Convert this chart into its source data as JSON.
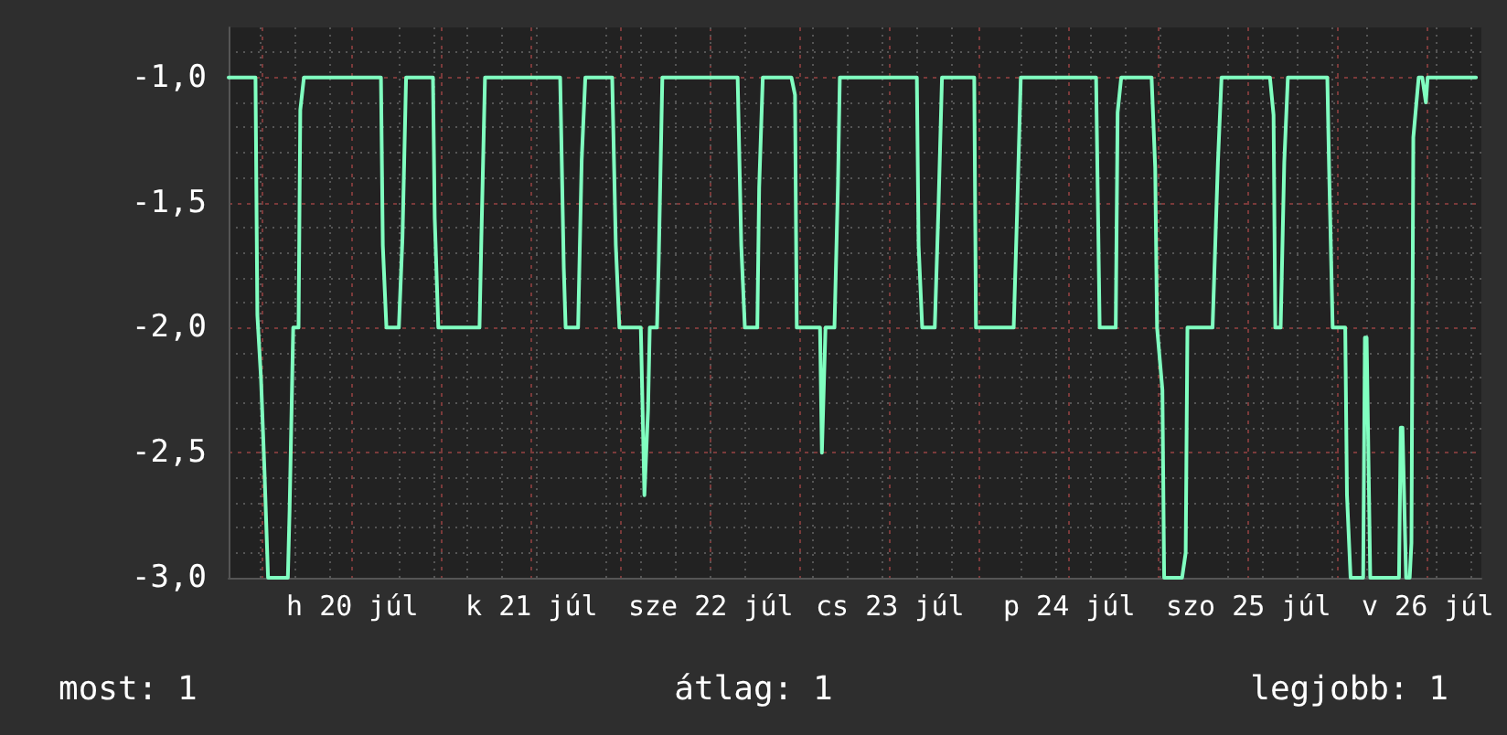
{
  "chart_data": {
    "type": "line",
    "x": [
      "--07-19T19:26",
      "--07-19T23:02",
      "--07-19T23:17",
      "--07-19T23:46",
      "--07-20T00:14",
      "--07-20T00:43",
      "--07-20T03:22",
      "--07-20T03:36",
      "--07-20T04:05",
      "--07-20T04:48",
      "--07-20T05:02",
      "--07-20T05:31",
      "--07-20T15:50",
      "--07-20T16:05",
      "--07-20T16:34",
      "--07-20T18:14",
      "--07-20T18:43",
      "--07-20T19:12",
      "--07-20T22:48",
      "--07-20T23:02",
      "--07-20T23:31",
      "--07-21T05:02",
      "--07-21T05:17",
      "--07-21T05:46",
      "--07-21T15:50",
      "--07-21T16:19",
      "--07-21T16:34",
      "--07-21T18:14",
      "--07-21T18:43",
      "--07-21T19:12",
      "--07-21T22:48",
      "--07-21T23:17",
      "--07-21T23:46",
      "--07-22T02:38",
      "--07-22T03:07",
      "--07-22T03:36",
      "--07-22T03:50",
      "--07-22T04:48",
      "--07-22T05:02",
      "--07-22T05:31",
      "--07-22T15:36",
      "--07-22T16:05",
      "--07-22T16:34",
      "--07-22T18:14",
      "--07-22T18:29",
      "--07-22T18:58",
      "--07-22T22:48",
      "--07-22T23:17",
      "--07-22T23:31",
      "--07-23T02:38",
      "--07-23T02:53",
      "--07-23T03:22",
      "--07-23T04:34",
      "--07-23T05:02",
      "--07-23T05:17",
      "--07-23T15:36",
      "--07-23T15:50",
      "--07-23T16:19",
      "--07-23T18:00",
      "--07-23T18:29",
      "--07-23T18:58",
      "--07-23T23:17",
      "--07-23T23:31",
      "--07-24T00:00",
      "--07-24T04:34",
      "--07-24T05:02",
      "--07-24T05:31",
      "--07-24T15:36",
      "--07-24T16:05",
      "--07-24T18:14",
      "--07-24T18:29",
      "--07-24T18:58",
      "--07-24T23:02",
      "--07-24T23:31",
      "--07-24T23:46",
      "--07-25T00:29",
      "--07-25T00:43",
      "--07-25T03:07",
      "--07-25T03:36",
      "--07-25T03:50",
      "--07-25T07:12",
      "--07-25T07:55",
      "--07-25T08:24",
      "--07-25T14:53",
      "--07-25T15:22",
      "--07-25T15:36",
      "--07-25T16:19",
      "--07-25T16:48",
      "--07-25T17:17",
      "--07-25T22:34",
      "--07-25T22:48",
      "--07-25T23:17",
      "--07-26T00:58",
      "--07-26T01:12",
      "--07-26T01:41",
      "--07-26T03:22",
      "--07-26T03:36",
      "--07-26T03:50",
      "--07-26T04:19",
      "--07-26T08:10",
      "--07-26T08:24",
      "--07-26T08:38",
      "--07-26T09:07",
      "--07-26T09:36",
      "--07-26T09:50",
      "--07-26T10:05",
      "--07-26T10:48",
      "--07-26T11:17",
      "--07-26T11:46",
      "--07-26T12:00",
      "--07-26T18:29"
    ],
    "series": [
      {
        "color": "#80ffc0",
        "values": [
          -1,
          -1,
          -1.95,
          -2.2,
          -2.57,
          -3,
          -3,
          -2.73,
          -2,
          -2,
          -1.13,
          -1,
          -1,
          -1.67,
          -2,
          -2,
          -1.64,
          -1,
          -1,
          -1.56,
          -2,
          -2,
          -1.64,
          -1,
          -1,
          -1.76,
          -2,
          -2,
          -1.33,
          -1,
          -1,
          -1.67,
          -2,
          -2,
          -2.67,
          -2.33,
          -2,
          -2,
          -1.73,
          -1,
          -1,
          -1.67,
          -2,
          -2,
          -1.44,
          -1,
          -1,
          -1.07,
          -2,
          -2,
          -2.5,
          -2,
          -2,
          -1.43,
          -1,
          -1,
          -1.67,
          -2,
          -2,
          -1.53,
          -1,
          -1,
          -2,
          -2,
          -2,
          -1.53,
          -1,
          -1,
          -2,
          -2,
          -1.14,
          -1,
          -1,
          -1.36,
          -2,
          -2.25,
          -3,
          -3,
          -2.9,
          -2,
          -2,
          -1.34,
          -1,
          -1,
          -1.15,
          -2,
          -2,
          -1.34,
          -1,
          -1,
          -1.36,
          -2,
          -2,
          -2.67,
          -3,
          -3,
          -2.04,
          -2.04,
          -3,
          -3,
          -2.4,
          -2.4,
          -3,
          -3,
          -2.86,
          -1.24,
          -1,
          -1,
          -1.1,
          -1,
          -1
        ]
      }
    ],
    "xlim": [
      "--07-19T19:26",
      "--07-26T19:12"
    ],
    "xticks": [
      {
        "value": "--07-20",
        "label": null
      },
      {
        "value": "--07-20T12:00",
        "label": "h 20 júl"
      },
      {
        "value": "--07-21",
        "label": null
      },
      {
        "value": "--07-21T12:00",
        "label": "k 21 júl"
      },
      {
        "value": "--07-22",
        "label": null
      },
      {
        "value": "--07-22T12:00",
        "label": "sze 22 júl"
      },
      {
        "value": "--07-23",
        "label": null
      },
      {
        "value": "--07-23T12:00",
        "label": "cs 23 júl"
      },
      {
        "value": "--07-24",
        "label": null
      },
      {
        "value": "--07-24T12:00",
        "label": "p 24 júl"
      },
      {
        "value": "--07-25",
        "label": null
      },
      {
        "value": "--07-25T12:00",
        "label": "szo 25 júl"
      },
      {
        "value": "--07-26",
        "label": null
      },
      {
        "value": "--07-26T12:00",
        "label": "v 26 júl"
      }
    ],
    "ylim": [
      -3,
      -0.8
    ],
    "yticks": [
      {
        "value": -3,
        "label": "-3,0"
      },
      {
        "value": -2.5,
        "label": "-2,5"
      },
      {
        "value": -2,
        "label": "-2,0"
      },
      {
        "value": -1.5,
        "label": "-1,5"
      },
      {
        "value": -1,
        "label": "-1,0"
      }
    ],
    "grid": true,
    "marker": "none",
    "line_style": "solid",
    "annotations": [
      "most: 1",
      "átlag: 1",
      "legjobb: 1"
    ]
  }
}
